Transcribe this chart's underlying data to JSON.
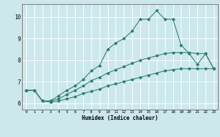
{
  "title": "",
  "xlabel": "Humidex (Indice chaleur)",
  "bg_color": "#cce8ec",
  "grid_color": "#ffffff",
  "line_color": "#2e7d6e",
  "xlim": [
    -0.5,
    23.5
  ],
  "ylim": [
    5.7,
    10.6
  ],
  "xticks": [
    0,
    1,
    2,
    3,
    4,
    5,
    6,
    7,
    8,
    9,
    10,
    11,
    12,
    13,
    14,
    15,
    16,
    17,
    18,
    19,
    20,
    21,
    22,
    23
  ],
  "yticks": [
    6,
    7,
    8,
    9,
    10
  ],
  "line1_x": [
    0,
    1,
    2,
    3,
    4,
    5,
    6,
    7,
    8,
    9,
    10,
    11,
    12,
    13,
    14,
    15,
    16,
    17,
    18,
    19,
    20,
    21,
    22,
    23
  ],
  "line1_y": [
    6.6,
    6.6,
    6.1,
    6.1,
    6.35,
    6.6,
    6.8,
    7.1,
    7.5,
    7.75,
    8.5,
    8.8,
    9.0,
    9.35,
    9.9,
    9.9,
    10.3,
    9.9,
    9.9,
    8.7,
    8.3,
    7.8,
    8.3,
    7.6
  ],
  "line2_x": [
    0,
    1,
    2,
    3,
    4,
    5,
    6,
    7,
    8,
    9,
    10,
    11,
    12,
    13,
    14,
    15,
    16,
    17,
    18,
    19,
    20,
    21,
    22,
    23
  ],
  "line2_y": [
    6.6,
    6.6,
    6.1,
    6.1,
    6.2,
    6.4,
    6.6,
    6.8,
    7.05,
    7.2,
    7.4,
    7.55,
    7.7,
    7.85,
    8.0,
    8.1,
    8.2,
    8.3,
    8.35,
    8.35,
    8.35,
    8.3,
    8.3,
    7.6
  ],
  "line3_x": [
    0,
    1,
    2,
    3,
    4,
    5,
    6,
    7,
    8,
    9,
    10,
    11,
    12,
    13,
    14,
    15,
    16,
    17,
    18,
    19,
    20,
    21,
    22,
    23
  ],
  "line3_y": [
    6.6,
    6.6,
    6.1,
    6.05,
    6.1,
    6.2,
    6.3,
    6.45,
    6.55,
    6.65,
    6.8,
    6.9,
    7.0,
    7.1,
    7.2,
    7.3,
    7.4,
    7.5,
    7.55,
    7.6,
    7.6,
    7.6,
    7.6,
    7.6
  ]
}
